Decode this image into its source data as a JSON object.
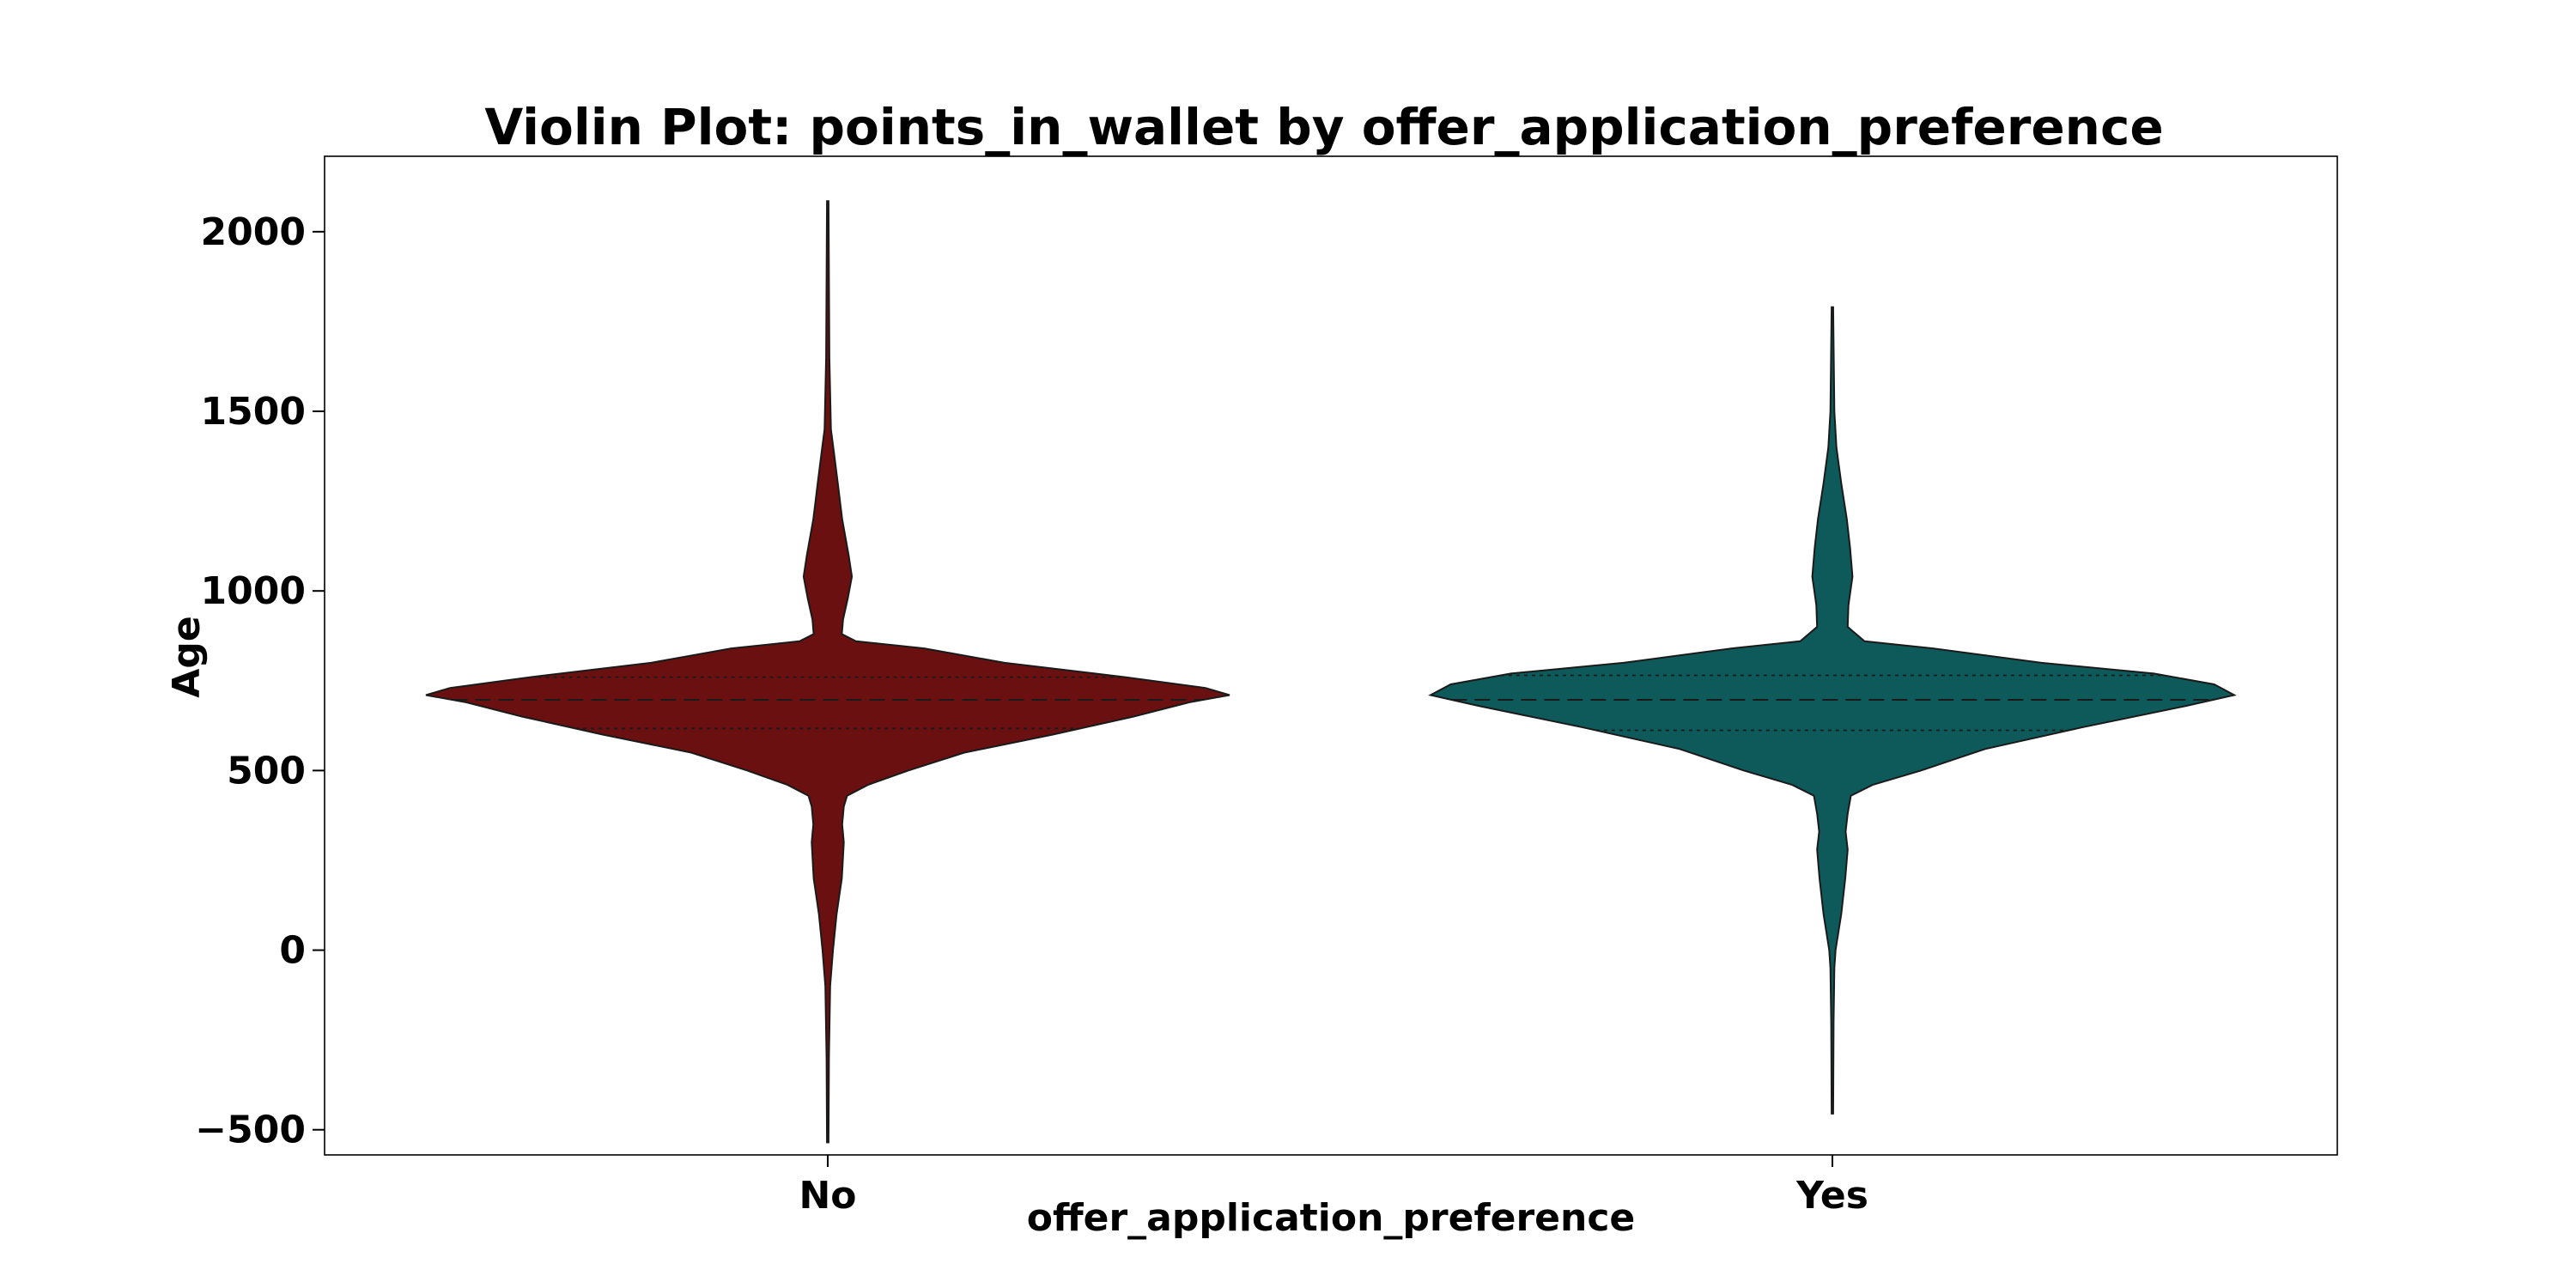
{
  "chart_data": {
    "type": "violin",
    "title": "Violin Plot: points_in_wallet by offer_application_preference",
    "xlabel": "offer_application_preference",
    "ylabel": "Age",
    "categories": [
      "No",
      "Yes"
    ],
    "ylim": [
      -570,
      2210
    ],
    "yticks": [
      -500,
      0,
      500,
      1000,
      1500,
      2000
    ],
    "ytick_labels": [
      "−500",
      "0",
      "500",
      "1000",
      "1500",
      "2000"
    ],
    "grid": false,
    "violins": [
      {
        "category": "No",
        "color": "#6b1010",
        "min": -535,
        "max": 2085,
        "q1": 617,
        "median": 697,
        "q3": 760,
        "profile": [
          [
            -535,
            0.002
          ],
          [
            -300,
            0.003
          ],
          [
            -100,
            0.006
          ],
          [
            0,
            0.013
          ],
          [
            100,
            0.022
          ],
          [
            200,
            0.035
          ],
          [
            300,
            0.04
          ],
          [
            350,
            0.036
          ],
          [
            400,
            0.04
          ],
          [
            430,
            0.048
          ],
          [
            460,
            0.1
          ],
          [
            500,
            0.2
          ],
          [
            550,
            0.34
          ],
          [
            600,
            0.56
          ],
          [
            650,
            0.76
          ],
          [
            690,
            0.9
          ],
          [
            710,
            1.0
          ],
          [
            730,
            0.94
          ],
          [
            760,
            0.74
          ],
          [
            800,
            0.44
          ],
          [
            840,
            0.24
          ],
          [
            860,
            0.07
          ],
          [
            880,
            0.035
          ],
          [
            920,
            0.038
          ],
          [
            980,
            0.05
          ],
          [
            1040,
            0.06
          ],
          [
            1100,
            0.052
          ],
          [
            1200,
            0.036
          ],
          [
            1300,
            0.025
          ],
          [
            1380,
            0.016
          ],
          [
            1450,
            0.008
          ],
          [
            1650,
            0.004
          ],
          [
            2085,
            0.002
          ]
        ]
      },
      {
        "category": "Yes",
        "color": "#0e5a5a",
        "min": -455,
        "max": 1790,
        "q1": 612,
        "median": 697,
        "q3": 765,
        "profile": [
          [
            -455,
            0.002
          ],
          [
            -200,
            0.003
          ],
          [
            -50,
            0.005
          ],
          [
            0,
            0.008
          ],
          [
            100,
            0.022
          ],
          [
            200,
            0.032
          ],
          [
            280,
            0.038
          ],
          [
            330,
            0.033
          ],
          [
            380,
            0.038
          ],
          [
            430,
            0.046
          ],
          [
            460,
            0.1
          ],
          [
            500,
            0.22
          ],
          [
            560,
            0.38
          ],
          [
            620,
            0.62
          ],
          [
            680,
            0.88
          ],
          [
            710,
            1.0
          ],
          [
            740,
            0.95
          ],
          [
            770,
            0.8
          ],
          [
            800,
            0.52
          ],
          [
            840,
            0.25
          ],
          [
            860,
            0.08
          ],
          [
            900,
            0.038
          ],
          [
            960,
            0.04
          ],
          [
            1040,
            0.05
          ],
          [
            1120,
            0.044
          ],
          [
            1200,
            0.036
          ],
          [
            1300,
            0.022
          ],
          [
            1400,
            0.01
          ],
          [
            1500,
            0.005
          ],
          [
            1790,
            0.002
          ]
        ]
      }
    ]
  }
}
